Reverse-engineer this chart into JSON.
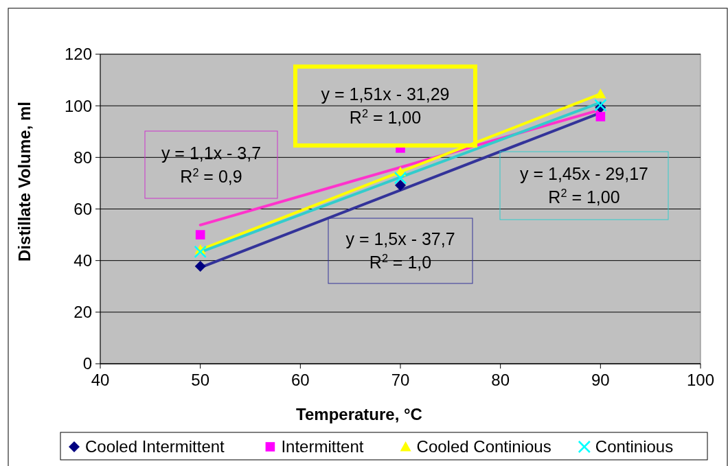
{
  "chart_data": {
    "type": "scatter",
    "xlabel": "Temperature, °C",
    "ylabel": "Distillate Volume, ml",
    "xlim": [
      40,
      100
    ],
    "xticks": [
      40,
      50,
      60,
      70,
      80,
      90,
      100
    ],
    "ylim": [
      0,
      120
    ],
    "yticks": [
      0,
      20,
      40,
      60,
      80,
      100,
      120
    ],
    "grid": "y",
    "legend": "bottom",
    "series": [
      {
        "name": "Cooled Intermittent",
        "marker": "diamond",
        "color": "#000080",
        "x": [
          50,
          70,
          90
        ],
        "values": [
          37.8,
          69.2,
          99.3
        ]
      },
      {
        "name": "Intermittent",
        "marker": "square",
        "color": "#ff00ff",
        "x": [
          50,
          70,
          90
        ],
        "values": [
          50,
          83.6,
          95.8
        ]
      },
      {
        "name": "Cooled Continious",
        "marker": "triangle",
        "color": "#ffff00",
        "x": [
          50,
          70,
          90
        ],
        "values": [
          44.2,
          74.4,
          104.6
        ]
      },
      {
        "name": "Continious",
        "marker": "cross",
        "color": "#00ffff",
        "x": [
          50,
          70,
          90
        ],
        "values": [
          43.4,
          72,
          100.2
        ]
      },
      {
        "type": "line",
        "color": "#333399",
        "x": [
          50,
          90
        ],
        "values": [
          37.3,
          97.3
        ]
      },
      {
        "type": "line",
        "color": "#ff33cc",
        "x": [
          50,
          90
        ],
        "values": [
          53.8,
          98.5
        ]
      },
      {
        "type": "line",
        "color": "#ffff00",
        "x": [
          50,
          90
        ],
        "values": [
          44.2,
          104.6
        ]
      },
      {
        "type": "line",
        "color": "#33cccc",
        "x": [
          50,
          90
        ],
        "values": [
          43.3,
          101.3
        ]
      }
    ],
    "annotations": [
      "y = 1,1x - 3,7\nR$^{2}$ = 0,9",
      "y = 1,51x - 31,29\nR$^{2}$ = 1,00",
      "y = 1,5x - 37,7\nR$^{2}$ = 1,0",
      "y = 1,45x - 29,17\nR$^{2}$ = 1,00"
    ]
  }
}
